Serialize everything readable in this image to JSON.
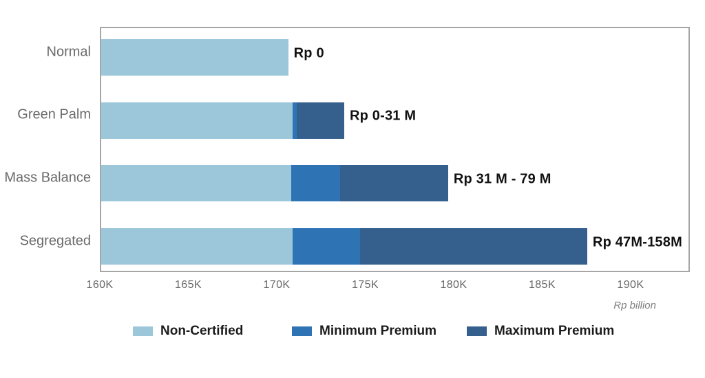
{
  "chart_data": {
    "type": "bar",
    "orientation": "horizontal",
    "stacked": true,
    "title": "",
    "categories": [
      "Normal",
      "Green Palm",
      "Mass Balance",
      "Segregated"
    ],
    "series_meta": [
      {
        "name": "Non-Certified",
        "color": "#9cc7db"
      },
      {
        "name": "Minimum Premium",
        "color": "#2e74b5"
      },
      {
        "name": "Maximum Premium",
        "color": "#355f8d"
      }
    ],
    "axis": {
      "min": 160,
      "max": 193.35,
      "tick_values": [
        160,
        165,
        170,
        175,
        180,
        185,
        190
      ],
      "tick_labels": [
        "160K",
        "165K",
        "170K",
        "175K",
        "180K",
        "185K",
        "190K"
      ],
      "unit_label": "Rp billion",
      "grid": false
    },
    "rows": [
      {
        "category": "Normal",
        "non_certified_end": 170.62,
        "min_premium_end": 170.62,
        "max_premium_end": 170.62,
        "premium_label": "Rp 0"
      },
      {
        "category": "Green Palm",
        "non_certified_end": 170.85,
        "min_premium_end": 171.1,
        "max_premium_end": 173.8,
        "premium_label": "Rp 0-31 M"
      },
      {
        "category": "Mass Balance",
        "non_certified_end": 170.8,
        "min_premium_end": 173.55,
        "max_premium_end": 179.7,
        "premium_label": "Rp 31 M - 79 M"
      },
      {
        "category": "Segregated",
        "non_certified_end": 170.85,
        "min_premium_end": 174.7,
        "max_premium_end": 187.6,
        "premium_label": "Rp 47M-158M"
      }
    ],
    "legend": {
      "entries": [
        "Non-Certified",
        "Minimum Premium",
        "Maximum Premium"
      ],
      "position": "bottom"
    }
  },
  "colors": {
    "plot_border": "#a6a6a6",
    "category_text": "#6a6a6a",
    "tick_text": "#666666",
    "data_label_text": "#111111",
    "background": "#ffffff"
  }
}
